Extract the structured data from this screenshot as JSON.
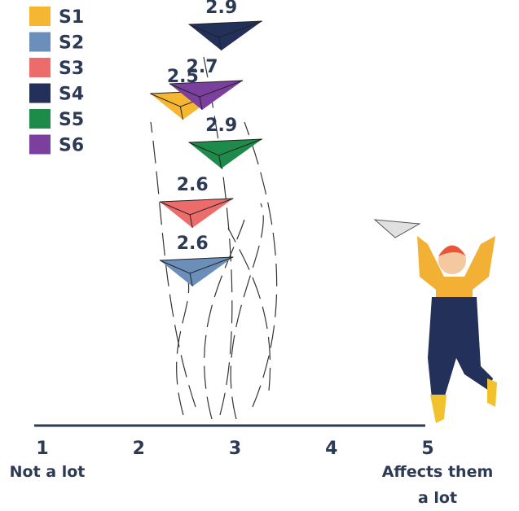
{
  "chart_data": {
    "type": "dot",
    "series": [
      {
        "name": "S1",
        "color": "#f5b731",
        "values": [
          2.5
        ]
      },
      {
        "name": "S2",
        "color": "#6b8fb8",
        "values": [
          2.6
        ]
      },
      {
        "name": "S3",
        "color": "#ec6b6b",
        "values": [
          2.6
        ]
      },
      {
        "name": "S4",
        "color": "#23305a",
        "values": [
          2.9
        ]
      },
      {
        "name": "S5",
        "color": "#1e8b4a",
        "values": [
          2.9
        ]
      },
      {
        "name": "S6",
        "color": "#7b3f9e",
        "values": [
          2.7
        ]
      }
    ],
    "xlim": [
      1,
      5
    ],
    "xticks": [
      1,
      2,
      3,
      4,
      5
    ],
    "x_end_labels": [
      "Not a lot",
      "Affects them a lot"
    ]
  }
}
